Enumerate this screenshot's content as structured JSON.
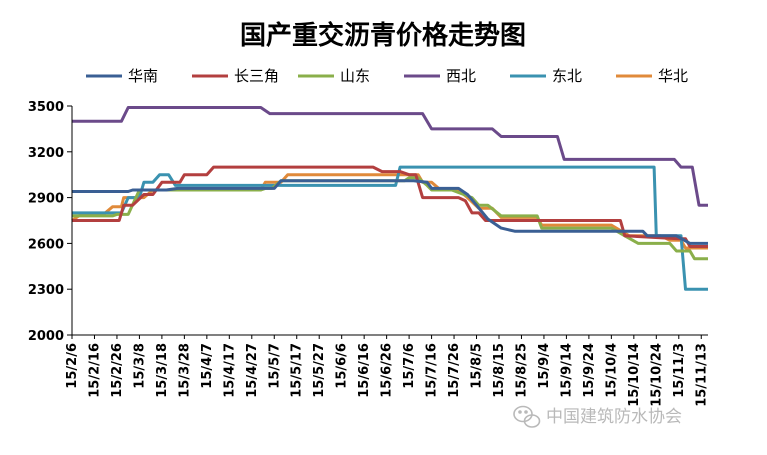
{
  "chart_data": {
    "type": "line",
    "title": "国产重交沥青价格走势图",
    "ylim": [
      2000,
      3500
    ],
    "yticks": [
      2000,
      2300,
      2600,
      2900,
      3200,
      3500
    ],
    "xlim": [
      "2015-02-06",
      "2015-11-16"
    ],
    "xticks": [
      "15/2/6",
      "15/2/16",
      "15/2/26",
      "15/3/8",
      "15/3/18",
      "15/3/28",
      "15/4/7",
      "15/4/17",
      "15/4/27",
      "15/5/7",
      "15/5/17",
      "15/5/27",
      "15/6/6",
      "15/6/16",
      "15/6/26",
      "15/7/6",
      "15/7/16",
      "15/7/26",
      "15/8/5",
      "15/8/15",
      "15/8/25",
      "15/9/4",
      "15/9/14",
      "15/9/24",
      "15/10/4",
      "15/10/14",
      "15/10/24",
      "15/11/3",
      "15/11/13"
    ],
    "legend_position": "top",
    "grid": false,
    "series": [
      {
        "name": "华南",
        "color": "#3a5f94",
        "points": [
          [
            "2015-02-06",
            2940
          ],
          [
            "2015-03-03",
            2940
          ],
          [
            "2015-03-05",
            2950
          ],
          [
            "2015-03-20",
            2950
          ],
          [
            "2015-03-25",
            2960
          ],
          [
            "2015-05-07",
            2960
          ],
          [
            "2015-05-10",
            3010
          ],
          [
            "2015-07-08",
            3010
          ],
          [
            "2015-07-14",
            3000
          ],
          [
            "2015-07-16",
            2960
          ],
          [
            "2015-07-28",
            2960
          ],
          [
            "2015-08-01",
            2920
          ],
          [
            "2015-08-05",
            2850
          ],
          [
            "2015-08-10",
            2760
          ],
          [
            "2015-08-16",
            2700
          ],
          [
            "2015-08-22",
            2680
          ],
          [
            "2015-10-18",
            2680
          ],
          [
            "2015-10-20",
            2650
          ],
          [
            "2015-11-02",
            2650
          ],
          [
            "2015-11-08",
            2600
          ],
          [
            "2015-11-16",
            2600
          ]
        ]
      },
      {
        "name": "长三角",
        "color": "#b33f3f",
        "points": [
          [
            "2015-02-06",
            2750
          ],
          [
            "2015-02-27",
            2750
          ],
          [
            "2015-03-01",
            2850
          ],
          [
            "2015-03-05",
            2850
          ],
          [
            "2015-03-10",
            2920
          ],
          [
            "2015-03-14",
            2920
          ],
          [
            "2015-03-18",
            3000
          ],
          [
            "2015-03-26",
            3000
          ],
          [
            "2015-03-28",
            3050
          ],
          [
            "2015-04-07",
            3050
          ],
          [
            "2015-04-10",
            3100
          ],
          [
            "2015-06-20",
            3100
          ],
          [
            "2015-06-24",
            3070
          ],
          [
            "2015-07-02",
            3070
          ],
          [
            "2015-07-06",
            3050
          ],
          [
            "2015-07-09",
            3050
          ],
          [
            "2015-07-12",
            2900
          ],
          [
            "2015-07-28",
            2900
          ],
          [
            "2015-07-31",
            2880
          ],
          [
            "2015-08-03",
            2800
          ],
          [
            "2015-08-06",
            2800
          ],
          [
            "2015-08-09",
            2750
          ],
          [
            "2015-10-08",
            2750
          ],
          [
            "2015-10-10",
            2650
          ],
          [
            "2015-11-03",
            2630
          ],
          [
            "2015-11-06",
            2630
          ],
          [
            "2015-11-08",
            2580
          ],
          [
            "2015-11-16",
            2580
          ]
        ]
      },
      {
        "name": "山东",
        "color": "#8aaf4a",
        "points": [
          [
            "2015-02-06",
            2780
          ],
          [
            "2015-02-24",
            2780
          ],
          [
            "2015-02-26",
            2790
          ],
          [
            "2015-03-03",
            2790
          ],
          [
            "2015-03-08",
            2950
          ],
          [
            "2015-05-01",
            2950
          ],
          [
            "2015-05-03",
            2960
          ],
          [
            "2015-05-06",
            2960
          ],
          [
            "2015-05-10",
            3010
          ],
          [
            "2015-07-04",
            3010
          ],
          [
            "2015-07-06",
            3030
          ],
          [
            "2015-07-10",
            3030
          ],
          [
            "2015-07-14",
            2980
          ],
          [
            "2015-07-16",
            2950
          ],
          [
            "2015-07-25",
            2950
          ],
          [
            "2015-08-03",
            2900
          ],
          [
            "2015-08-06",
            2850
          ],
          [
            "2015-08-10",
            2850
          ],
          [
            "2015-08-16",
            2780
          ],
          [
            "2015-09-01",
            2780
          ],
          [
            "2015-09-03",
            2700
          ],
          [
            "2015-10-04",
            2700
          ],
          [
            "2015-10-10",
            2650
          ],
          [
            "2015-10-16",
            2600
          ],
          [
            "2015-10-30",
            2600
          ],
          [
            "2015-11-02",
            2550
          ],
          [
            "2015-11-08",
            2550
          ],
          [
            "2015-11-10",
            2500
          ],
          [
            "2015-11-16",
            2500
          ]
        ]
      },
      {
        "name": "西北",
        "color": "#6b4a8a",
        "points": [
          [
            "2015-02-06",
            3400
          ],
          [
            "2015-02-28",
            3400
          ],
          [
            "2015-03-03",
            3490
          ],
          [
            "2015-05-01",
            3490
          ],
          [
            "2015-05-05",
            3450
          ],
          [
            "2015-07-12",
            3450
          ],
          [
            "2015-07-16",
            3350
          ],
          [
            "2015-08-12",
            3350
          ],
          [
            "2015-08-16",
            3300
          ],
          [
            "2015-09-10",
            3300
          ],
          [
            "2015-09-13",
            3150
          ],
          [
            "2015-11-01",
            3150
          ],
          [
            "2015-11-04",
            3100
          ],
          [
            "2015-11-09",
            3100
          ],
          [
            "2015-11-12",
            2850
          ],
          [
            "2015-11-16",
            2850
          ]
        ]
      },
      {
        "name": "东北",
        "color": "#3a92b0",
        "points": [
          [
            "2015-02-06",
            2800
          ],
          [
            "2015-02-28",
            2800
          ],
          [
            "2015-03-03",
            2900
          ],
          [
            "2015-03-08",
            2900
          ],
          [
            "2015-03-10",
            3000
          ],
          [
            "2015-03-14",
            3000
          ],
          [
            "2015-03-17",
            3050
          ],
          [
            "2015-03-21",
            3050
          ],
          [
            "2015-03-24",
            2980
          ],
          [
            "2015-06-30",
            2980
          ],
          [
            "2015-07-02",
            3100
          ],
          [
            "2015-10-23",
            3100
          ],
          [
            "2015-10-24",
            2650
          ],
          [
            "2015-11-04",
            2650
          ],
          [
            "2015-11-06",
            2300
          ],
          [
            "2015-11-16",
            2300
          ]
        ]
      },
      {
        "name": "华北",
        "color": "#e08a3a",
        "points": [
          [
            "2015-02-06",
            2750
          ],
          [
            "2015-02-10",
            2790
          ],
          [
            "2015-02-20",
            2790
          ],
          [
            "2015-02-24",
            2840
          ],
          [
            "2015-02-28",
            2840
          ],
          [
            "2015-03-01",
            2900
          ],
          [
            "2015-03-10",
            2900
          ],
          [
            "2015-03-14",
            2950
          ],
          [
            "2015-05-01",
            2950
          ],
          [
            "2015-05-03",
            3000
          ],
          [
            "2015-05-10",
            3000
          ],
          [
            "2015-05-13",
            3050
          ],
          [
            "2015-07-10",
            3050
          ],
          [
            "2015-07-12",
            3000
          ],
          [
            "2015-07-16",
            3000
          ],
          [
            "2015-07-20",
            2950
          ],
          [
            "2015-07-28",
            2950
          ],
          [
            "2015-08-01",
            2900
          ],
          [
            "2015-08-06",
            2830
          ],
          [
            "2015-08-12",
            2830
          ],
          [
            "2015-08-16",
            2770
          ],
          [
            "2015-09-01",
            2770
          ],
          [
            "2015-09-03",
            2720
          ],
          [
            "2015-10-04",
            2720
          ],
          [
            "2015-10-12",
            2650
          ],
          [
            "2015-10-26",
            2650
          ],
          [
            "2015-10-30",
            2620
          ],
          [
            "2015-11-04",
            2620
          ],
          [
            "2015-11-06",
            2570
          ],
          [
            "2015-11-16",
            2570
          ]
        ]
      }
    ]
  },
  "watermark": {
    "text": "中国建筑防水协会",
    "icon": "wechat-icon"
  }
}
